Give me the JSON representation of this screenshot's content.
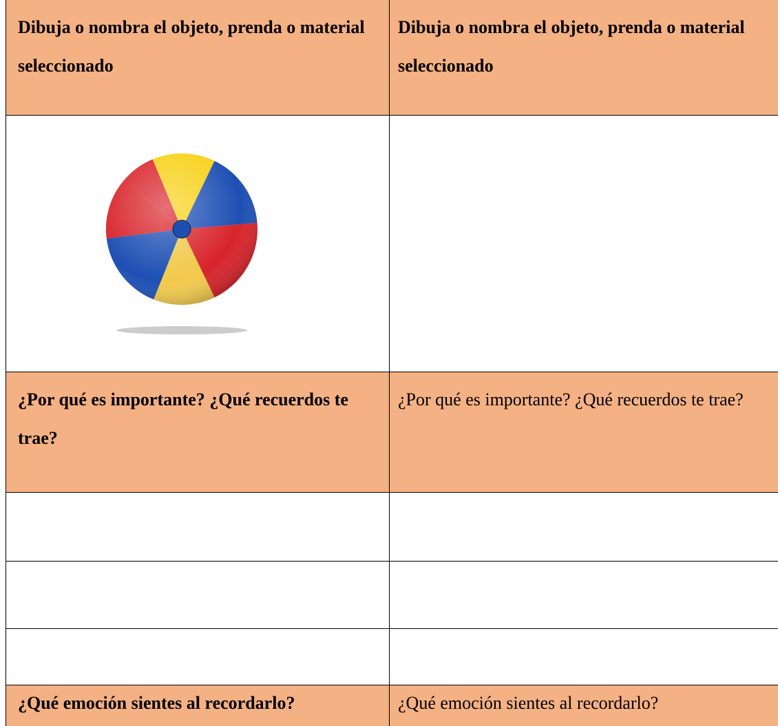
{
  "table": {
    "header": [
      "Dibuja o nombra el objeto, prenda o material seleccionado",
      "Dibuja o nombra el objeto, prenda o material seleccionado"
    ],
    "question_row": [
      "¿Por qué es importante? ¿Qué recuerdos te trae?",
      "¿Por qué es importante? ¿Qué recuerdos te trae?"
    ],
    "emotion_row": [
      "¿Qué emoción sientes al recordarlo?",
      "¿Qué emoción sientes al recordarlo?"
    ]
  }
}
